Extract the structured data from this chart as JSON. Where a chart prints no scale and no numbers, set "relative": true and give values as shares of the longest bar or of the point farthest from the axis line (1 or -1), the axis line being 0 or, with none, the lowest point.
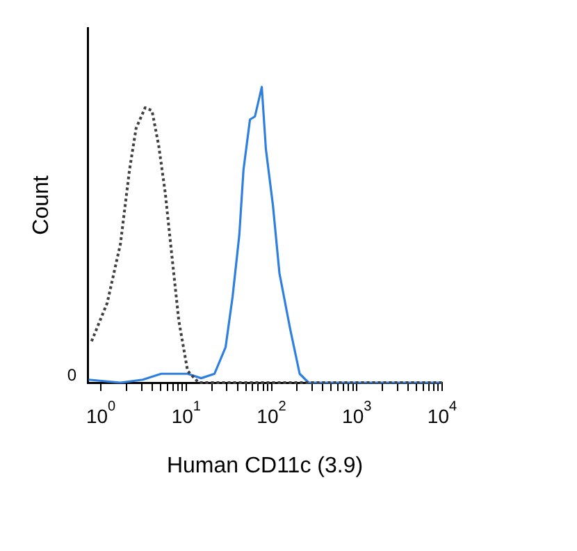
{
  "chart_data": {
    "type": "line",
    "relative": true,
    "xlabel": "Human CD11c (3.9)",
    "ylabel": "Count",
    "log": "x",
    "xlim": [
      0.7,
      10000
    ],
    "xticks": [
      {
        "value": 1,
        "label": "10$^{0}$"
      },
      {
        "value": 2,
        "label": null
      },
      {
        "value": 3,
        "label": null
      },
      {
        "value": 4,
        "label": null
      },
      {
        "value": 5,
        "label": null
      },
      {
        "value": 6,
        "label": null
      },
      {
        "value": 7,
        "label": null
      },
      {
        "value": 8,
        "label": null
      },
      {
        "value": 9,
        "label": null
      },
      {
        "value": 10,
        "label": "10$^{1}$"
      },
      {
        "value": 20,
        "label": null
      },
      {
        "value": 30,
        "label": null
      },
      {
        "value": 40,
        "label": null
      },
      {
        "value": 50,
        "label": null
      },
      {
        "value": 60,
        "label": null
      },
      {
        "value": 70,
        "label": null
      },
      {
        "value": 80,
        "label": null
      },
      {
        "value": 90,
        "label": null
      },
      {
        "value": 100,
        "label": "10$^{2}$"
      },
      {
        "value": 200,
        "label": null
      },
      {
        "value": 300,
        "label": null
      },
      {
        "value": 400,
        "label": null
      },
      {
        "value": 500,
        "label": null
      },
      {
        "value": 600,
        "label": null
      },
      {
        "value": 700,
        "label": null
      },
      {
        "value": 800,
        "label": null
      },
      {
        "value": 900,
        "label": null
      },
      {
        "value": 1000,
        "label": "10$^{3}$"
      },
      {
        "value": 2000,
        "label": null
      },
      {
        "value": 3000,
        "label": null
      },
      {
        "value": 4000,
        "label": null
      },
      {
        "value": 5000,
        "label": null
      },
      {
        "value": 6000,
        "label": null
      },
      {
        "value": 7000,
        "label": null
      },
      {
        "value": 8000,
        "label": null
      },
      {
        "value": 9000,
        "label": null
      },
      {
        "value": 10000,
        "label": "10$^{4}$"
      }
    ],
    "annotations": [
      "0"
    ],
    "grid": false,
    "legend": false,
    "series": [
      {
        "color": "#404040",
        "line_style": "dotted",
        "x": [
          0.78,
          1.19,
          1.7,
          2.17,
          2.59,
          3.31,
          3.98,
          4.78,
          5.7,
          6.8,
          8.2,
          10.4,
          14,
          100,
          10000
        ],
        "values": [
          0.14,
          0.27,
          0.47,
          0.72,
          0.86,
          0.93,
          0.92,
          0.8,
          0.64,
          0.43,
          0.21,
          0.04,
          0,
          0,
          0
        ]
      },
      {
        "color": "#2f7fe0",
        "line_style": "solid",
        "x": [
          0.72,
          1.7,
          3.1,
          5.1,
          10.4,
          15,
          21.5,
          29,
          35,
          42,
          47,
          56,
          64,
          77,
          86,
          104,
          124,
          166,
          214,
          272,
          1000,
          10000
        ],
        "values": [
          0.01,
          0,
          0.01,
          0.03,
          0.03,
          0.015,
          0.03,
          0.12,
          0.29,
          0.5,
          0.72,
          0.89,
          0.9,
          1,
          0.79,
          0.6,
          0.37,
          0.18,
          0.03,
          0,
          0,
          0
        ]
      }
    ]
  }
}
